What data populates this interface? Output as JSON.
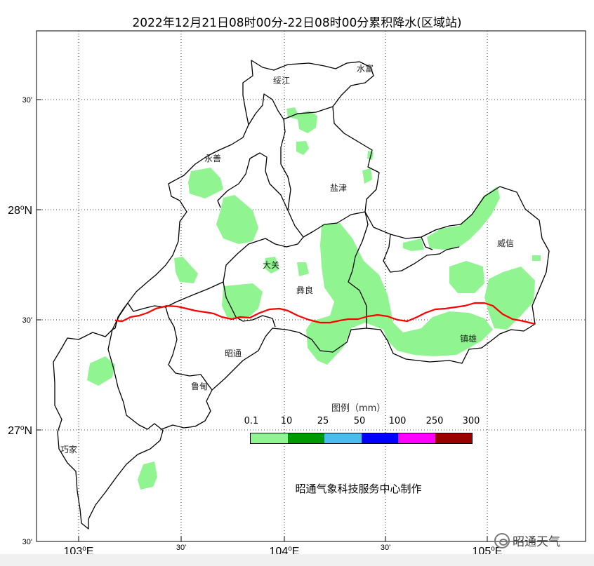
{
  "title": "2022年12月21日08时00分-22日08时00分累积降水(区域站)",
  "axes": {
    "x_ticks": [
      {
        "main": "103",
        "sup": "o",
        "tail": "E"
      },
      {
        "main": "30'",
        "sup": "",
        "tail": ""
      },
      {
        "main": "104",
        "sup": "o",
        "tail": "E"
      },
      {
        "main": "30'",
        "sup": "",
        "tail": ""
      },
      {
        "main": "105",
        "sup": "o",
        "tail": "E"
      }
    ],
    "y_ticks": [
      {
        "main": "30'",
        "sup": "",
        "tail": ""
      },
      {
        "main": "28",
        "sup": "o",
        "tail": "N"
      },
      {
        "main": "30'",
        "sup": "",
        "tail": ""
      },
      {
        "main": "27",
        "sup": "o",
        "tail": "N"
      },
      {
        "main": "30'",
        "sup": "",
        "tail": ""
      }
    ],
    "lon_range": [
      102.68,
      105.4
    ],
    "lat_range": [
      26.47,
      28.72
    ],
    "grid": "dotted"
  },
  "places": [
    {
      "name": "绥江"
    },
    {
      "name": "水富"
    },
    {
      "name": "永善"
    },
    {
      "name": "盐津"
    },
    {
      "name": "大关"
    },
    {
      "name": "彝良"
    },
    {
      "name": "威信"
    },
    {
      "name": "镇雄"
    },
    {
      "name": "昭通"
    },
    {
      "name": "鲁甸"
    },
    {
      "name": "巧家"
    }
  ],
  "legend": {
    "title": "图例（mm）",
    "labels": [
      "0.1",
      "10",
      "25",
      "50",
      "100",
      "250",
      "300"
    ],
    "colors": [
      "#90f590",
      "#009900",
      "#4cbcf0",
      "#0000ff",
      "#ff00ff",
      "#990000"
    ]
  },
  "colors": {
    "boundary": "#000000",
    "snow_line": "#ff0000",
    "precip_light": "#90f590"
  },
  "credit": "昭通气象科技服务中心制作",
  "watermark": "昭通天气"
}
